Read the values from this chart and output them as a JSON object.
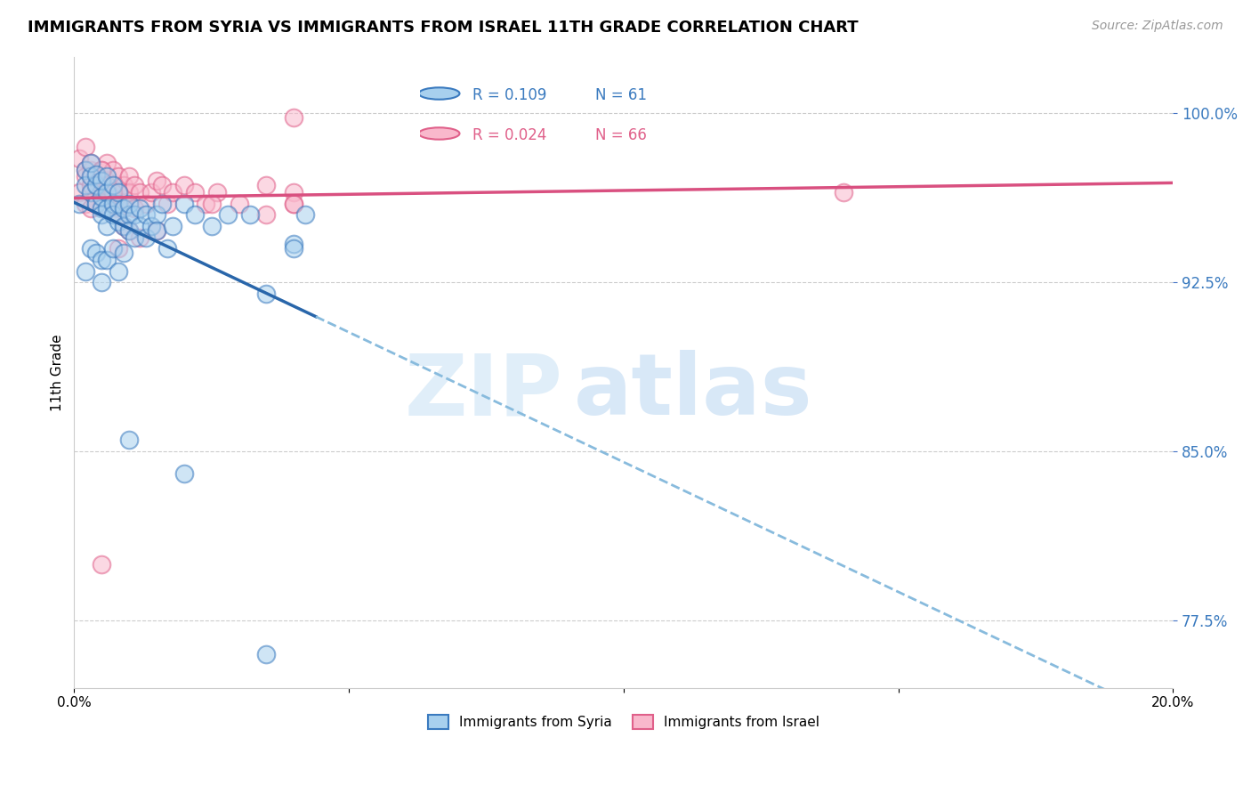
{
  "title": "IMMIGRANTS FROM SYRIA VS IMMIGRANTS FROM ISRAEL 11TH GRADE CORRELATION CHART",
  "source": "Source: ZipAtlas.com",
  "ylabel": "11th Grade",
  "yticks": [
    0.775,
    0.85,
    0.925,
    1.0
  ],
  "ytick_labels": [
    "77.5%",
    "85.0%",
    "92.5%",
    "100.0%"
  ],
  "xlim": [
    0.0,
    0.2
  ],
  "ylim": [
    0.745,
    1.025
  ],
  "legend_r_blue": "R = 0.109",
  "legend_n_blue": "N = 61",
  "legend_r_pink": "R = 0.024",
  "legend_n_pink": "N = 66",
  "legend_label_blue": "Immigrants from Syria",
  "legend_label_pink": "Immigrants from Israel",
  "color_blue": "#a8d0ee",
  "color_pink": "#f9b8cc",
  "edge_blue": "#3a7abf",
  "edge_pink": "#e0608a",
  "line_blue": "#2966aa",
  "line_pink": "#d95080",
  "line_blue_dash": "#88bbdd",
  "watermark_zip": "ZIP",
  "watermark_atlas": "atlas",
  "blue_scatter_x": [
    0.001,
    0.002,
    0.002,
    0.003,
    0.003,
    0.003,
    0.004,
    0.004,
    0.004,
    0.005,
    0.005,
    0.005,
    0.005,
    0.006,
    0.006,
    0.006,
    0.006,
    0.007,
    0.007,
    0.007,
    0.008,
    0.008,
    0.008,
    0.009,
    0.009,
    0.01,
    0.01,
    0.01,
    0.011,
    0.011,
    0.012,
    0.012,
    0.013,
    0.013,
    0.014,
    0.015,
    0.015,
    0.016,
    0.017,
    0.018,
    0.02,
    0.022,
    0.025,
    0.028,
    0.032,
    0.035,
    0.04,
    0.04,
    0.042,
    0.005,
    0.002,
    0.003,
    0.004,
    0.005,
    0.006,
    0.007,
    0.008,
    0.009,
    0.01,
    0.02,
    0.035
  ],
  "blue_scatter_y": [
    0.96,
    0.975,
    0.968,
    0.972,
    0.965,
    0.978,
    0.968,
    0.973,
    0.96,
    0.958,
    0.963,
    0.97,
    0.955,
    0.965,
    0.958,
    0.972,
    0.95,
    0.96,
    0.968,
    0.955,
    0.952,
    0.96,
    0.965,
    0.958,
    0.95,
    0.955,
    0.96,
    0.948,
    0.955,
    0.945,
    0.958,
    0.95,
    0.945,
    0.955,
    0.95,
    0.955,
    0.948,
    0.96,
    0.94,
    0.95,
    0.96,
    0.955,
    0.95,
    0.955,
    0.955,
    0.92,
    0.942,
    0.94,
    0.955,
    0.925,
    0.93,
    0.94,
    0.938,
    0.935,
    0.935,
    0.94,
    0.93,
    0.938,
    0.855,
    0.84,
    0.76
  ],
  "pink_scatter_x": [
    0.001,
    0.001,
    0.002,
    0.002,
    0.002,
    0.003,
    0.003,
    0.003,
    0.004,
    0.004,
    0.004,
    0.005,
    0.005,
    0.005,
    0.006,
    0.006,
    0.006,
    0.007,
    0.007,
    0.007,
    0.008,
    0.008,
    0.008,
    0.009,
    0.009,
    0.01,
    0.01,
    0.011,
    0.011,
    0.012,
    0.013,
    0.014,
    0.015,
    0.016,
    0.017,
    0.018,
    0.02,
    0.022,
    0.024,
    0.026,
    0.03,
    0.035,
    0.04,
    0.04,
    0.005,
    0.003,
    0.004,
    0.005,
    0.006,
    0.007,
    0.003,
    0.002,
    0.003,
    0.004,
    0.008,
    0.009,
    0.01,
    0.012,
    0.015,
    0.025,
    0.035,
    0.04,
    0.008,
    0.04,
    0.14,
    0.005
  ],
  "pink_scatter_y": [
    0.98,
    0.965,
    0.985,
    0.975,
    0.96,
    0.975,
    0.965,
    0.978,
    0.972,
    0.968,
    0.96,
    0.975,
    0.968,
    0.96,
    0.97,
    0.978,
    0.962,
    0.975,
    0.968,
    0.96,
    0.972,
    0.965,
    0.958,
    0.968,
    0.96,
    0.972,
    0.965,
    0.968,
    0.958,
    0.965,
    0.96,
    0.965,
    0.97,
    0.968,
    0.96,
    0.965,
    0.968,
    0.965,
    0.96,
    0.965,
    0.96,
    0.968,
    0.965,
    0.96,
    0.968,
    0.972,
    0.968,
    0.975,
    0.968,
    0.965,
    0.958,
    0.972,
    0.968,
    0.96,
    0.955,
    0.95,
    0.948,
    0.945,
    0.948,
    0.96,
    0.955,
    0.96,
    0.94,
    0.998,
    0.965,
    0.8
  ]
}
